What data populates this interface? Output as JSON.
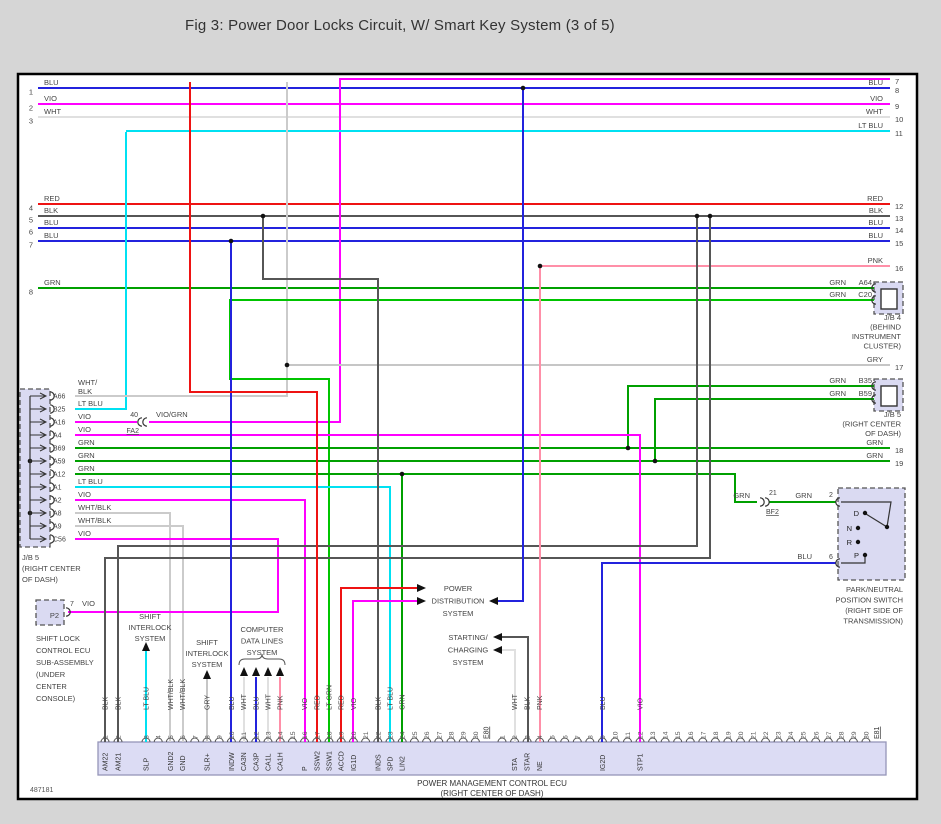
{
  "title": "Fig 3: Power Door Locks Circuit, W/ Smart Key System (3 of 5)",
  "figure_id": "487181",
  "colors": {
    "BLU": "#2323dd",
    "VIO": "#ff00ff",
    "WHT": "#e0e0e0",
    "LT BLU": "#00e1f2",
    "RED": "#ee1313",
    "BLK": "#565656",
    "GRN": "#00a000",
    "LT GRN": "#00c400",
    "PNK": "#ff8fa8",
    "GRY": "#c6c6c6",
    "WHT/BLK": "#cbcbcb",
    "VIO/GRN": "#ff00ff"
  },
  "left_wires": [
    {
      "num": "1",
      "color": "BLU"
    },
    {
      "num": "2",
      "color": "VIO"
    },
    {
      "num": "3",
      "color": "WHT"
    },
    {
      "num": "4",
      "color": "RED"
    },
    {
      "num": "5",
      "color": "BLK"
    },
    {
      "num": "6",
      "color": "BLU"
    },
    {
      "num": "7",
      "color": "BLU"
    },
    {
      "num": "8",
      "color": "GRN"
    }
  ],
  "right_wires": [
    {
      "num": "7",
      "color": ""
    },
    {
      "num": "8",
      "color": "BLU"
    },
    {
      "num": "9",
      "color": "VIO"
    },
    {
      "num": "10",
      "color": "WHT"
    },
    {
      "num": "11",
      "color": "LT BLU"
    },
    {
      "num": "12",
      "color": "RED"
    },
    {
      "num": "13",
      "color": "BLK"
    },
    {
      "num": "14",
      "color": "BLU"
    },
    {
      "num": "15",
      "color": "BLU"
    },
    {
      "num": "16",
      "color": "PNK"
    },
    {
      "num": "17",
      "color": "GRY"
    },
    {
      "num": "18",
      "color": "GRN"
    },
    {
      "num": "19",
      "color": "GRN"
    }
  ],
  "jb4": {
    "name": "J/B 4",
    "location": [
      "(BEHIND",
      "INSTRUMENT",
      "CLUSTER)"
    ],
    "pins": [
      {
        "id": "A64",
        "wire": "GRN"
      },
      {
        "id": "C20",
        "wire": "GRN"
      }
    ]
  },
  "jb5_right": {
    "name": "J/B 5",
    "location": [
      "(RIGHT CENTER",
      "OF DASH)"
    ],
    "pins": [
      {
        "id": "B35",
        "wire": "GRN"
      },
      {
        "id": "B59",
        "wire": "GRN"
      }
    ]
  },
  "jb5_left": {
    "name": "J/B 5",
    "location": [
      "(RIGHT CENTER",
      "OF DASH)"
    ],
    "pins": [
      {
        "id": "A66",
        "wire": "WHT/BLK",
        "label_lines": [
          "WHT/",
          "BLK"
        ]
      },
      {
        "id": "B25",
        "wire": "LT BLU"
      },
      {
        "id": "A16",
        "wire": "VIO"
      },
      {
        "id": "A4",
        "wire": "VIO"
      },
      {
        "id": "B69",
        "wire": "GRN"
      },
      {
        "id": "A59",
        "wire": "GRN"
      },
      {
        "id": "A12",
        "wire": "GRN"
      },
      {
        "id": "A1",
        "wire": "LT BLU"
      },
      {
        "id": "A2",
        "wire": "VIO"
      },
      {
        "id": "A8",
        "wire": "WHT/BLK"
      },
      {
        "id": "A9",
        "wire": "WHT/BLK"
      },
      {
        "id": "C56",
        "wire": "VIO"
      }
    ]
  },
  "fa2": {
    "num": "40",
    "id": "FA2",
    "wire": "VIO/GRN"
  },
  "bf2": {
    "num": "21",
    "id": "BF2",
    "wire_left": "GRN",
    "wire_right": "GRN",
    "dest_pin": "2"
  },
  "pnp_switch": {
    "caption": [
      "PARK/NEUTRAL",
      "POSITION SWITCH",
      "(RIGHT SIDE OF",
      "TRANSMISSION)"
    ],
    "positions": [
      "D",
      "N",
      "R",
      "P"
    ],
    "pin2": {
      "num": "2",
      "wire": "GRN"
    },
    "pin6": {
      "num": "6",
      "wire": "BLU"
    }
  },
  "shift_lock_ecu": {
    "connector": "P2",
    "pin": "7",
    "wire": "VIO",
    "caption": [
      "SHIFT LOCK",
      "CONTROL ECU",
      "SUB-ASSEMBLY",
      "(UNDER",
      "CENTER",
      "CONSOLE)"
    ]
  },
  "systems": {
    "shift_interlock_1": [
      "SHIFT",
      "INTERLOCK",
      "SYSTEM"
    ],
    "shift_interlock_2": [
      "SHIFT",
      "INTERLOCK",
      "SYSTEM"
    ],
    "computer_data": [
      "COMPUTER",
      "DATA LINES",
      "SYSTEM"
    ],
    "power_distribution": [
      "POWER",
      "DISTRIBUTION",
      "SYSTEM"
    ],
    "starting_charging": [
      "STARTING/",
      "CHARGING",
      "SYSTEM"
    ]
  },
  "ecu": {
    "label_line1": "POWER MANAGEMENT CONTROL ECU",
    "label_line2": "(RIGHT CENTER OF DASH)",
    "connectors": [
      {
        "id": "E80",
        "pin_count": 30,
        "pins": [
          {
            "num": 1,
            "name": "AM22",
            "wire": "BLK"
          },
          {
            "num": 2,
            "name": "AM21",
            "wire": "BLK"
          },
          {
            "num": 3,
            "name": "SLP",
            "wire": "LT BLU"
          },
          {
            "num": 5,
            "name": "GND2",
            "wire": "WHT/BLK"
          },
          {
            "num": 6,
            "name": "GND",
            "wire": "WHT/BLK"
          },
          {
            "num": 8,
            "name": "SLR+",
            "wire": "GRY"
          },
          {
            "num": 10,
            "name": "INDW",
            "wire": "BLU"
          },
          {
            "num": 11,
            "name": "CA3N",
            "wire": "WHT"
          },
          {
            "num": 12,
            "name": "CA3P",
            "wire": "BLU"
          },
          {
            "num": 13,
            "name": "CA1L",
            "wire": "WHT"
          },
          {
            "num": 14,
            "name": "CA1H",
            "wire": "PNK"
          },
          {
            "num": 16,
            "name": "P",
            "wire": "VIO"
          },
          {
            "num": 17,
            "name": "SSW2",
            "wire": "RED"
          },
          {
            "num": 18,
            "name": "SSW1",
            "wire": "LT GRN"
          },
          {
            "num": 19,
            "name": "ACCD",
            "wire": "RED"
          },
          {
            "num": 20,
            "name": "IG1D",
            "wire": "VIO"
          },
          {
            "num": 22,
            "name": "INDS",
            "wire": "BLK"
          },
          {
            "num": 23,
            "name": "SPD",
            "wire": "LT BLU"
          },
          {
            "num": 24,
            "name": "LIN2",
            "wire": "GRN"
          }
        ]
      },
      {
        "id": "E81",
        "pin_count": 30,
        "pins": [
          {
            "num": 2,
            "name": "STA",
            "wire": "WHT"
          },
          {
            "num": 3,
            "name": "STAR",
            "wire": "BLK"
          },
          {
            "num": 4,
            "name": "NE",
            "wire": "PNK"
          },
          {
            "num": 9,
            "name": "IG2D",
            "wire": "BLU"
          },
          {
            "num": 12,
            "name": "STP1",
            "wire": "VIO"
          }
        ]
      }
    ]
  }
}
